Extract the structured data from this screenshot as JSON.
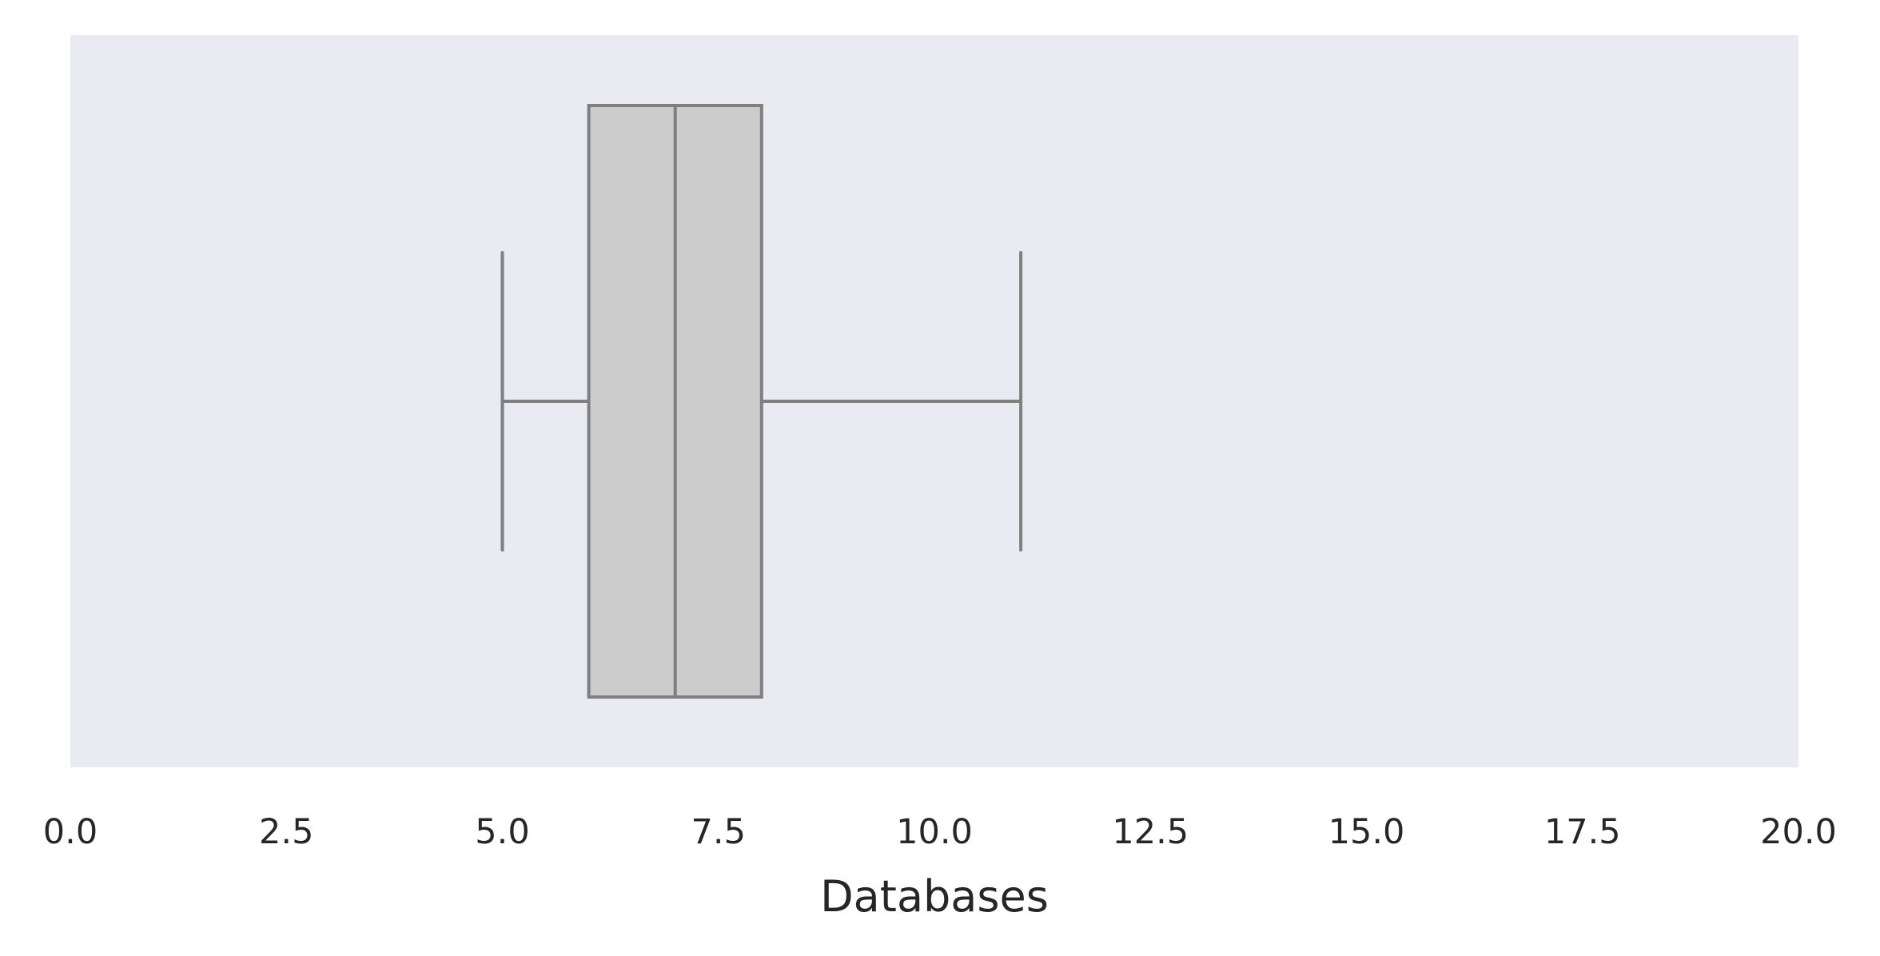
{
  "chart_data": {
    "type": "box",
    "orientation": "horizontal",
    "title": "",
    "xlabel": "Databases",
    "ylabel": "",
    "xlim": [
      0,
      20
    ],
    "x_ticks": [
      "0.0",
      "2.5",
      "5.0",
      "7.5",
      "10.0",
      "12.5",
      "15.0",
      "17.5",
      "20.0"
    ],
    "grid": false,
    "series": [
      {
        "whisker_low": 5,
        "q1": 6,
        "median": 7,
        "q3": 8,
        "whisker_high": 11,
        "outliers": []
      }
    ],
    "colors": {
      "plot_background": "#eaeaf2",
      "box_fill": "#cccccc",
      "box_line": "#7f7f7f",
      "text": "#262626"
    }
  }
}
